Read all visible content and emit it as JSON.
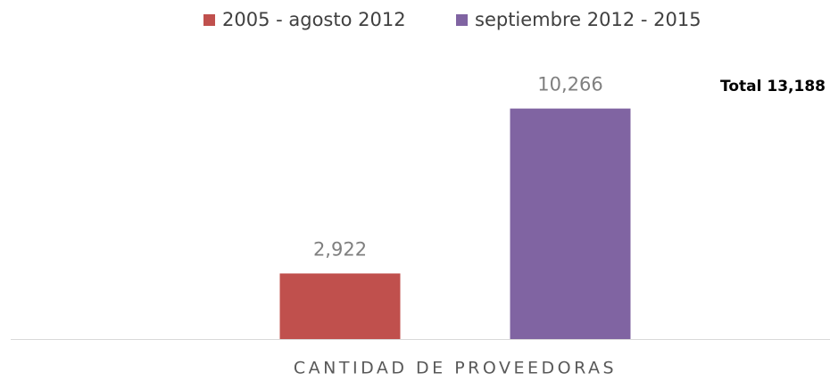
{
  "chart_data": {
    "type": "bar",
    "categories": [
      "CANTIDAD DE PROVEEDORAS"
    ],
    "series": [
      {
        "name": "2005 - agosto 2012",
        "color": "#c0504d",
        "values": [
          2922
        ],
        "value_labels": [
          "2,922"
        ]
      },
      {
        "name": "septiembre 2012 - 2015",
        "color": "#8064a2",
        "values": [
          10266
        ],
        "value_labels": [
          "10,266"
        ]
      }
    ],
    "annotation": "Total 13,188",
    "ylim": [
      0,
      12000
    ],
    "legend": "top"
  }
}
